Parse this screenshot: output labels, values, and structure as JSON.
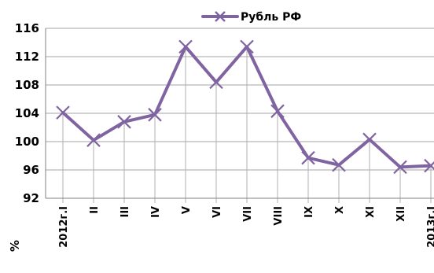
{
  "chart_data": {
    "type": "line",
    "title": "",
    "xlabel": "",
    "ylabel": "",
    "ylim": [
      92,
      116
    ],
    "yticks": [
      92,
      96,
      100,
      104,
      108,
      112,
      116
    ],
    "grid": true,
    "legend_position": "top-center",
    "categories": [
      "2012г.I",
      "II",
      "III",
      "IV",
      "V",
      "VI",
      "VII",
      "VIII",
      "IX",
      "X",
      "XI",
      "XII",
      "2013г.I"
    ],
    "series": [
      {
        "name": "Рубль РФ",
        "color": "#8064a2",
        "marker": "x-icon",
        "values": [
          104.1,
          100.2,
          102.8,
          103.8,
          113.4,
          108.4,
          113.4,
          104.3,
          97.7,
          96.7,
          100.3,
          96.4,
          96.6
        ]
      }
    ],
    "corner_label": "%"
  }
}
